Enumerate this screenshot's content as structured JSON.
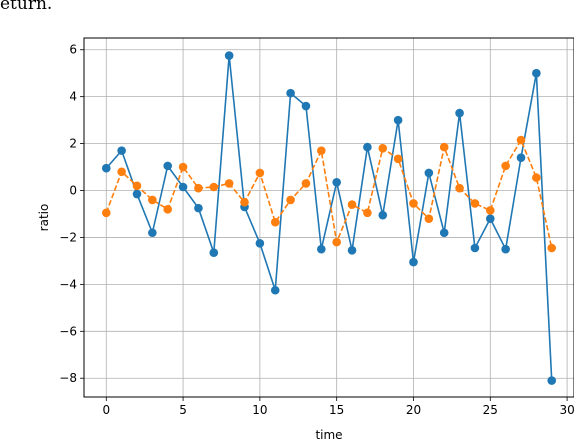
{
  "page_text": "eturn.",
  "chart_data": {
    "type": "line",
    "xlabel": "time",
    "ylabel": "ratio",
    "xlim": [
      -1.45,
      30.45
    ],
    "ylim": [
      -8.8,
      6.5
    ],
    "xticks": [
      0,
      5,
      10,
      15,
      20,
      25,
      30
    ],
    "yticks": [
      -8,
      -6,
      -4,
      -2,
      0,
      2,
      4,
      6
    ],
    "grid": true,
    "x": [
      0,
      1,
      2,
      3,
      4,
      5,
      6,
      7,
      8,
      9,
      10,
      11,
      12,
      13,
      14,
      15,
      16,
      17,
      18,
      19,
      20,
      21,
      22,
      23,
      24,
      25,
      26,
      27,
      28,
      29
    ],
    "series": [
      {
        "color": "#1f77b4",
        "linestyle": "solid",
        "marker": "circle",
        "values": [
          0.95,
          1.7,
          -0.15,
          -1.8,
          1.05,
          0.15,
          -0.75,
          -2.65,
          5.75,
          -0.7,
          -2.25,
          -4.25,
          4.15,
          3.6,
          -2.5,
          0.35,
          -2.55,
          1.85,
          -1.05,
          3.0,
          -3.05,
          0.75,
          -1.8,
          3.3,
          -2.45,
          -1.2,
          -2.5,
          1.4,
          5.0,
          -8.1
        ]
      },
      {
        "color": "#ff7f0e",
        "linestyle": "dashed",
        "marker": "circle",
        "values": [
          -0.95,
          0.8,
          0.2,
          -0.4,
          -0.8,
          1.0,
          0.1,
          0.15,
          0.3,
          -0.5,
          0.75,
          -1.35,
          -0.4,
          0.3,
          1.7,
          -2.2,
          -0.6,
          -0.95,
          1.8,
          1.35,
          -0.55,
          -1.2,
          1.85,
          0.1,
          -0.55,
          -0.85,
          1.05,
          2.15,
          0.55,
          -2.45
        ]
      }
    ]
  }
}
